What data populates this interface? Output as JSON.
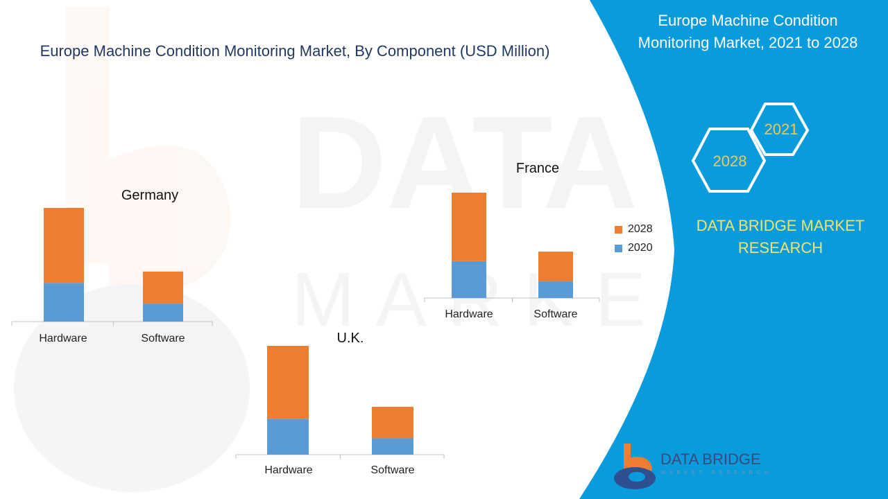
{
  "title": "Europe Machine Condition Monitoring Market, By Component (USD Million)",
  "side_panel": {
    "title": "Europe Machine Condition Monitoring Market, 2021 to 2028",
    "hex_left": "2028",
    "hex_right": "2021",
    "brand": "DATA BRIDGE MARKET RESEARCH",
    "logo_name": "DATA BRIDGE",
    "logo_sub": "MARKET RESEARCH",
    "bg_color": "#0a9bdc"
  },
  "colors": {
    "s2020": "#5b9bd5",
    "s2028": "#ed7d31"
  },
  "legend": [
    {
      "label": "2028",
      "color": "#ed7d31"
    },
    {
      "label": "2020",
      "color": "#5b9bd5"
    }
  ],
  "chart_data": [
    {
      "type": "bar",
      "stacked": true,
      "title": "Germany",
      "categories": [
        "Hardware",
        "Software"
      ],
      "series": [
        {
          "name": "2020",
          "values": [
            34,
            16
          ]
        },
        {
          "name": "2028",
          "values": [
            66,
            28
          ]
        }
      ],
      "ylim": [
        0,
        100
      ]
    },
    {
      "type": "bar",
      "stacked": true,
      "title": "France",
      "categories": [
        "Hardware",
        "Software"
      ],
      "series": [
        {
          "name": "2020",
          "values": [
            35,
            16
          ]
        },
        {
          "name": "2028",
          "values": [
            65,
            28
          ]
        }
      ],
      "ylim": [
        0,
        100
      ]
    },
    {
      "type": "bar",
      "stacked": true,
      "title": "U.K.",
      "categories": [
        "Hardware",
        "Software"
      ],
      "series": [
        {
          "name": "2020",
          "values": [
            33,
            15
          ]
        },
        {
          "name": "2028",
          "values": [
            67,
            29
          ]
        }
      ],
      "ylim": [
        0,
        100
      ]
    }
  ]
}
